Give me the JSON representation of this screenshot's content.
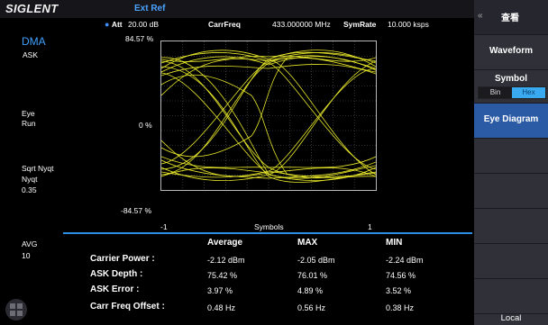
{
  "brand": "SIGLENT",
  "header": {
    "ext_ref": "Ext Ref",
    "att_label": "Att",
    "att_value": "20.00 dB",
    "carrfreq_label": "CarrFreq",
    "carrfreq_value": "433.000000 MHz",
    "symrate_label": "SymRate",
    "symrate_value": "10.000 ksps"
  },
  "left_panel": {
    "mode": "DMA",
    "modulation": "ASK",
    "eye_label": "Eye",
    "eye_state": "Run",
    "filter_label": "Sqrt Nyqt",
    "filter_type": "Nyqt",
    "filter_alpha": "0.35",
    "avg_label": "AVG",
    "avg_value": "10"
  },
  "plot": {
    "y_top": "84.57 %",
    "y_mid": "0 %",
    "y_bottom": "-84.57 %",
    "x_left": "-1",
    "x_center": "Symbols",
    "x_right": "1"
  },
  "results": {
    "headers": [
      "Average",
      "MAX",
      "MIN"
    ],
    "rows": [
      {
        "label": "Carrier Power :",
        "avg": "-2.12 dBm",
        "max": "-2.05 dBm",
        "min": "-2.24 dBm"
      },
      {
        "label": "ASK Depth :",
        "avg": "75.42 %",
        "max": "76.01 %",
        "min": "74.56 %"
      },
      {
        "label": "ASK Error :",
        "avg": "3.97 %",
        "max": "4.89 %",
        "min": "3.52 %"
      },
      {
        "label": "Carr Freq Offset :",
        "avg": "0.48 Hz",
        "max": "0.56 Hz",
        "min": "0.38 Hz"
      }
    ]
  },
  "sidebar": {
    "title": "查看",
    "waveform": "Waveform",
    "symbol": "Symbol",
    "bin": "Bin",
    "hex": "Hex",
    "eye_diagram": "Eye Diagram",
    "local": "Local"
  },
  "colors": {
    "trace": "#e6e62a",
    "accent": "#2b8fe6",
    "active_button": "#2c5ba6"
  }
}
